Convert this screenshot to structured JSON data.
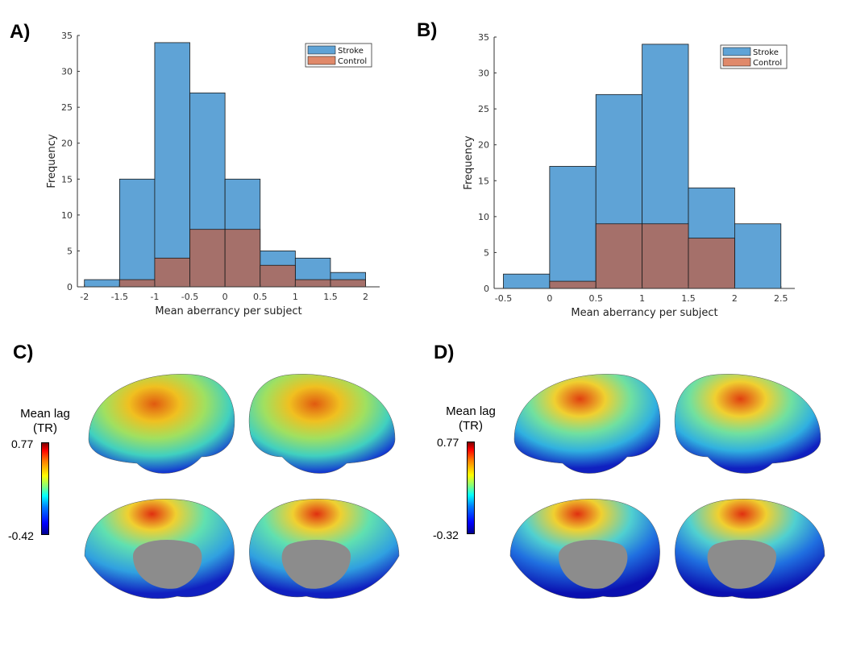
{
  "panels": {
    "a": "A)",
    "b": "B)",
    "c": "C)",
    "d": "D)"
  },
  "colors": {
    "stroke": "#5fa3d6",
    "control": "#a5706a",
    "legend_control": "#e0896a"
  },
  "chart_data": [
    {
      "type": "bar",
      "title": "",
      "xlabel": "Mean aberrancy per subject",
      "ylabel": "Frequency",
      "bin_edges": [
        -2,
        -1.5,
        -1,
        -0.5,
        0,
        0.5,
        1,
        1.5,
        2
      ],
      "xlim": [
        -2.1,
        2.2
      ],
      "ylim": [
        0,
        35
      ],
      "xticks": [
        "-2",
        "-1.5",
        "-1",
        "-0.5",
        "0",
        "0.5",
        "1",
        "1.5",
        "2"
      ],
      "yticks": [
        "0",
        "5",
        "10",
        "15",
        "20",
        "25",
        "30",
        "35"
      ],
      "legend_position": "top-right",
      "series": [
        {
          "name": "Stroke",
          "values": [
            1,
            15,
            34,
            27,
            15,
            5,
            4,
            2
          ]
        },
        {
          "name": "Control",
          "values": [
            0,
            1,
            4,
            8,
            8,
            3,
            1,
            1
          ]
        }
      ]
    },
    {
      "type": "bar",
      "title": "",
      "xlabel": "Mean aberrancy per subject",
      "ylabel": "Frequency",
      "bin_edges": [
        -0.5,
        0,
        0.5,
        1,
        1.5,
        2,
        2.5
      ],
      "xlim": [
        -0.6,
        2.65
      ],
      "ylim": [
        0,
        35
      ],
      "xticks": [
        "-0.5",
        "0",
        "0.5",
        "1",
        "1.5",
        "2",
        "2.5"
      ],
      "yticks": [
        "0",
        "5",
        "10",
        "15",
        "20",
        "25",
        "30",
        "35"
      ],
      "legend_position": "top-right",
      "series": [
        {
          "name": "Stroke",
          "values": [
            2,
            17,
            27,
            34,
            14,
            9
          ]
        },
        {
          "name": "Control",
          "values": [
            0,
            1,
            9,
            9,
            7,
            0
          ]
        }
      ]
    }
  ],
  "colorbar_c": {
    "title_line1": "Mean lag",
    "title_line2": "(TR)",
    "max": "0.77",
    "min": "-0.42"
  },
  "colorbar_d": {
    "title_line1": "Mean lag",
    "title_line2": "(TR)",
    "max": "0.77",
    "min": "-0.32"
  }
}
